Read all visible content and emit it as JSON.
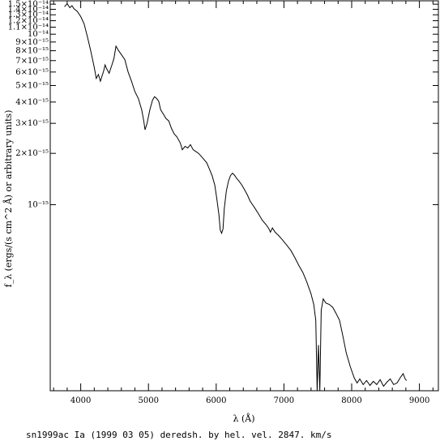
{
  "chart_data": {
    "type": "line",
    "xlabel": "λ (Å)",
    "ylabel": "f_λ (ergs/(s cm^2 Å) or arbitrary units)",
    "caption": "sn1999ac Ia (1999 03 05) deredsh. by hel. vel.  2847. km/s",
    "x_scale": "linear",
    "y_scale": "log",
    "xlim": [
      3550,
      9280
    ],
    "ylim": [
      8.1e-17,
      1.57e-14
    ],
    "x_ticks": [
      4000,
      5000,
      6000,
      7000,
      8000,
      9000
    ],
    "x_tick_labels": [
      "4000",
      "5000",
      "6000",
      "7000",
      "8000",
      "9000"
    ],
    "y_ticks": [
      1.5e-14,
      1.4e-14,
      1.3e-14,
      1.2e-14,
      1.1e-14,
      1e-14,
      9e-15,
      8e-15,
      7e-15,
      6e-15,
      5e-15,
      4e-15,
      3e-15,
      2e-15,
      1e-15
    ],
    "y_tick_labels": [
      "1.5×10⁻¹⁴",
      "1.4×10⁻¹⁴",
      "1.3×10⁻¹⁴",
      "1.2×10⁻¹⁴",
      "1.1×10⁻¹⁴",
      "10⁻¹⁴",
      "9×10⁻¹⁵",
      "8×10⁻¹⁵",
      "7×10⁻¹⁵",
      "6×10⁻¹⁵",
      "5×10⁻¹⁵",
      "4×10⁻¹⁵",
      "3×10⁻¹⁵",
      "2×10⁻¹⁵",
      "10⁻¹⁵"
    ],
    "series": [
      {
        "x": [
          3760,
          3800,
          3840,
          3870,
          3900,
          3950,
          4000,
          4050,
          4100,
          4150,
          4200,
          4230,
          4260,
          4290,
          4310,
          4340,
          4360,
          4380,
          4420,
          4460,
          4490,
          4520,
          4560,
          4600,
          4650,
          4700,
          4750,
          4800,
          4850,
          4900,
          4930,
          4950,
          4980,
          5020,
          5060,
          5090,
          5120,
          5150,
          5180,
          5220,
          5260,
          5300,
          5340,
          5380,
          5420,
          5470,
          5500,
          5540,
          5580,
          5620,
          5660,
          5700,
          5740,
          5780,
          5820,
          5860,
          5900,
          5940,
          5980,
          6010,
          6040,
          6060,
          6080,
          6100,
          6120,
          6150,
          6180,
          6210,
          6240,
          6270,
          6300,
          6340,
          6380,
          6420,
          6460,
          6500,
          6560,
          6620,
          6680,
          6740,
          6780,
          6800,
          6830,
          6870,
          6920,
          6980,
          7040,
          7100,
          7160,
          7220,
          7280,
          7340,
          7400,
          7440,
          7470,
          7490,
          7510,
          7530,
          7550,
          7580,
          7620,
          7670,
          7720,
          7770,
          7820,
          7870,
          7920,
          7980,
          8040,
          8080,
          8120,
          8170,
          8220,
          8270,
          8320,
          8370,
          8420,
          8470,
          8520,
          8570,
          8620,
          8670,
          8720,
          8760,
          8790,
          8810
        ],
        "y": [
          1.45e-14,
          1.51e-14,
          1.43e-14,
          1.47e-14,
          1.41e-14,
          1.36e-14,
          1.27e-14,
          1.15e-14,
          9.6e-15,
          7.9e-15,
          6.4e-15,
          5.5e-15,
          5.8e-15,
          5.3e-15,
          5.6e-15,
          6.1e-15,
          6.6e-15,
          6.3e-15,
          5.9e-15,
          6.6e-15,
          7.2e-15,
          8.5e-15,
          8e-15,
          7.6e-15,
          7.1e-15,
          6e-15,
          5.3e-15,
          4.6e-15,
          4.2e-15,
          3.6e-15,
          3.1e-15,
          2.75e-15,
          3e-15,
          3.6e-15,
          4.1e-15,
          4.3e-15,
          4.2e-15,
          4.05e-15,
          3.6e-15,
          3.4e-15,
          3.2e-15,
          3.1e-15,
          2.8e-15,
          2.6e-15,
          2.5e-15,
          2.3e-15,
          2.1e-15,
          2.2e-15,
          2.15e-15,
          2.25e-15,
          2.1e-15,
          2.05e-15,
          2e-15,
          1.92e-15,
          1.84e-15,
          1.76e-15,
          1.62e-15,
          1.48e-15,
          1.3e-15,
          1.08e-15,
          8.7e-16,
          7.1e-16,
          6.8e-16,
          7.2e-16,
          9.5e-16,
          1.2e-15,
          1.37e-15,
          1.48e-15,
          1.53e-15,
          1.49e-15,
          1.43e-15,
          1.37e-15,
          1.3e-15,
          1.22e-15,
          1.14e-15,
          1.05e-15,
          9.7e-16,
          8.9e-16,
          8.1e-16,
          7.6e-16,
          7.2e-16,
          6.9e-16,
          7.3e-16,
          6.9e-16,
          6.6e-16,
          6.2e-16,
          5.8e-16,
          5.4e-16,
          4.9e-16,
          4.4e-16,
          4e-16,
          3.5e-16,
          3e-16,
          2.6e-16,
          2.1e-16,
          8.1e-17,
          1.5e-16,
          8.1e-17,
          2.4e-16,
          2.8e-16,
          2.65e-16,
          2.6e-16,
          2.5e-16,
          2.3e-16,
          2.1e-16,
          1.7e-16,
          1.35e-16,
          1.12e-16,
          9.6e-17,
          9e-17,
          9.5e-17,
          8.8e-17,
          9.3e-17,
          8.7e-17,
          9.2e-17,
          8.8e-17,
          9.4e-17,
          8.6e-17,
          9.1e-17,
          9.5e-17,
          8.8e-17,
          9e-17,
          9.7e-17,
          1.02e-16,
          9.5e-17,
          9.3e-17
        ]
      }
    ]
  }
}
